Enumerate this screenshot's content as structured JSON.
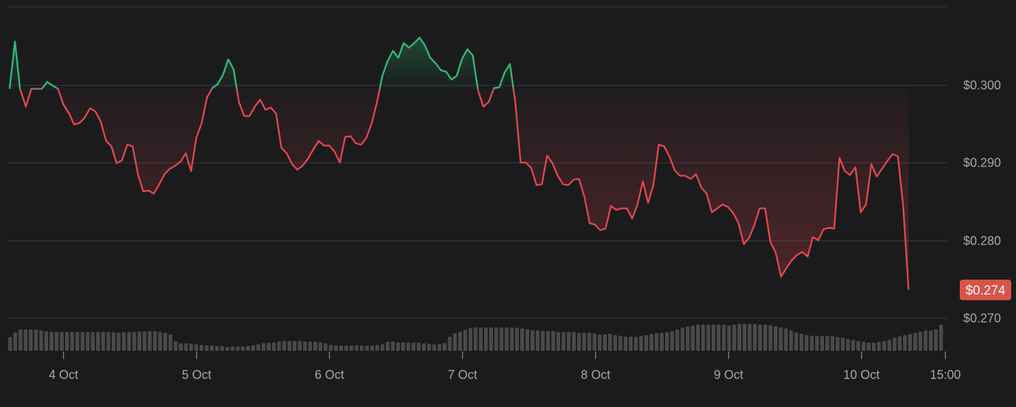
{
  "chart_data": {
    "type": "area",
    "baseline": 0.2995,
    "ylim": [
      0.265,
      0.31
    ],
    "y_ticks": [
      {
        "value": 0.3,
        "label": "$0.300"
      },
      {
        "value": 0.29,
        "label": "$0.290"
      },
      {
        "value": 0.28,
        "label": "$0.280"
      },
      {
        "value": 0.27,
        "label": "$0.270"
      }
    ],
    "x_ticks": [
      {
        "label": "4 Oct",
        "x": 6.54
      },
      {
        "label": "5 Oct",
        "x": 13.55
      },
      {
        "label": "6 Oct",
        "x": 20.55
      },
      {
        "label": "7 Oct",
        "x": 27.56
      },
      {
        "label": "8 Oct",
        "x": 34.57
      },
      {
        "label": "9 Oct",
        "x": 41.58
      },
      {
        "label": "10 Oct",
        "x": 48.58
      },
      {
        "label": "15:00",
        "x": 53.0
      }
    ],
    "x_range": [
      3.7,
      53.0
    ],
    "current_price": {
      "value": 0.2736,
      "label": "$0.274"
    },
    "colors": {
      "up": "#2fbf75",
      "down": "#e5484d",
      "grid": "#3a3a3e",
      "volume": "#4a4a4d",
      "badge": "#d9534a"
    },
    "series": [
      {
        "points": [
          [
            3.7,
            0.2995
          ],
          [
            3.98,
            0.3056
          ],
          [
            4.25,
            0.2995
          ],
          [
            4.56,
            0.2972
          ],
          [
            4.84,
            0.2995
          ],
          [
            5.12,
            0.2995
          ],
          [
            5.4,
            0.2995
          ],
          [
            5.68,
            0.3004
          ],
          [
            5.97,
            0.2999
          ],
          [
            6.25,
            0.2995
          ],
          [
            6.53,
            0.2975
          ],
          [
            6.82,
            0.2964
          ],
          [
            7.1,
            0.2949
          ],
          [
            7.38,
            0.2951
          ],
          [
            7.66,
            0.2958
          ],
          [
            7.94,
            0.297
          ],
          [
            8.22,
            0.2966
          ],
          [
            8.5,
            0.2953
          ],
          [
            8.78,
            0.2928
          ],
          [
            9.06,
            0.2921
          ],
          [
            9.34,
            0.2899
          ],
          [
            9.62,
            0.2903
          ],
          [
            9.9,
            0.2923
          ],
          [
            10.18,
            0.2921
          ],
          [
            10.46,
            0.2885
          ],
          [
            10.74,
            0.2863
          ],
          [
            11.02,
            0.2864
          ],
          [
            11.3,
            0.286
          ],
          [
            11.58,
            0.2872
          ],
          [
            11.86,
            0.2885
          ],
          [
            12.14,
            0.2892
          ],
          [
            12.42,
            0.2896
          ],
          [
            12.7,
            0.2901
          ],
          [
            12.98,
            0.2912
          ],
          [
            13.26,
            0.2889
          ],
          [
            13.54,
            0.2932
          ],
          [
            13.82,
            0.2951
          ],
          [
            14.1,
            0.2984
          ],
          [
            14.38,
            0.2996
          ],
          [
            14.66,
            0.3001
          ],
          [
            14.94,
            0.3013
          ],
          [
            15.22,
            0.3033
          ],
          [
            15.5,
            0.302
          ],
          [
            15.78,
            0.2978
          ],
          [
            16.06,
            0.296
          ],
          [
            16.34,
            0.296
          ],
          [
            16.62,
            0.2972
          ],
          [
            16.9,
            0.2981
          ],
          [
            17.18,
            0.2968
          ],
          [
            17.46,
            0.2971
          ],
          [
            17.74,
            0.2963
          ],
          [
            18.02,
            0.2919
          ],
          [
            18.3,
            0.2912
          ],
          [
            18.58,
            0.2898
          ],
          [
            18.86,
            0.2891
          ],
          [
            19.14,
            0.2896
          ],
          [
            19.42,
            0.2905
          ],
          [
            19.7,
            0.2917
          ],
          [
            19.98,
            0.2928
          ],
          [
            20.26,
            0.2922
          ],
          [
            20.54,
            0.2922
          ],
          [
            20.82,
            0.2914
          ],
          [
            21.1,
            0.29
          ],
          [
            21.38,
            0.2933
          ],
          [
            21.66,
            0.2934
          ],
          [
            21.94,
            0.2925
          ],
          [
            22.22,
            0.2923
          ],
          [
            22.5,
            0.2932
          ],
          [
            22.78,
            0.2951
          ],
          [
            23.06,
            0.2978
          ],
          [
            23.34,
            0.3012
          ],
          [
            23.62,
            0.3031
          ],
          [
            23.9,
            0.3044
          ],
          [
            24.18,
            0.3035
          ],
          [
            24.46,
            0.3054
          ],
          [
            24.74,
            0.3048
          ],
          [
            25.02,
            0.3054
          ],
          [
            25.3,
            0.3061
          ],
          [
            25.58,
            0.3051
          ],
          [
            25.86,
            0.3035
          ],
          [
            26.14,
            0.3028
          ],
          [
            26.42,
            0.3019
          ],
          [
            26.7,
            0.3017
          ],
          [
            26.98,
            0.3007
          ],
          [
            27.26,
            0.3012
          ],
          [
            27.54,
            0.3034
          ],
          [
            27.82,
            0.3046
          ],
          [
            28.1,
            0.3038
          ],
          [
            28.38,
            0.2993
          ],
          [
            28.66,
            0.2972
          ],
          [
            28.94,
            0.2978
          ],
          [
            29.22,
            0.2996
          ],
          [
            29.5,
            0.2997
          ],
          [
            29.78,
            0.3016
          ],
          [
            30.06,
            0.3027
          ],
          [
            30.34,
            0.2978
          ],
          [
            30.62,
            0.29
          ],
          [
            30.9,
            0.29
          ],
          [
            31.18,
            0.2893
          ],
          [
            31.46,
            0.2871
          ],
          [
            31.74,
            0.2872
          ],
          [
            32.02,
            0.2909
          ],
          [
            32.3,
            0.2899
          ],
          [
            32.58,
            0.2883
          ],
          [
            32.86,
            0.2872
          ],
          [
            33.14,
            0.2871
          ],
          [
            33.42,
            0.2878
          ],
          [
            33.7,
            0.2879
          ],
          [
            33.98,
            0.2856
          ],
          [
            34.26,
            0.2822
          ],
          [
            34.54,
            0.282
          ],
          [
            34.82,
            0.2813
          ],
          [
            35.1,
            0.2815
          ],
          [
            35.38,
            0.2844
          ],
          [
            35.66,
            0.2839
          ],
          [
            35.94,
            0.2841
          ],
          [
            36.22,
            0.2841
          ],
          [
            36.5,
            0.2828
          ],
          [
            36.78,
            0.2846
          ],
          [
            37.06,
            0.2876
          ],
          [
            37.34,
            0.2848
          ],
          [
            37.62,
            0.2872
          ],
          [
            37.9,
            0.2923
          ],
          [
            38.18,
            0.2921
          ],
          [
            38.46,
            0.2908
          ],
          [
            38.74,
            0.289
          ],
          [
            39.02,
            0.2883
          ],
          [
            39.3,
            0.2883
          ],
          [
            39.58,
            0.2879
          ],
          [
            39.86,
            0.2885
          ],
          [
            40.14,
            0.2868
          ],
          [
            40.42,
            0.286
          ],
          [
            40.7,
            0.2836
          ],
          [
            40.98,
            0.2841
          ],
          [
            41.26,
            0.2846
          ],
          [
            41.54,
            0.2843
          ],
          [
            41.82,
            0.2835
          ],
          [
            42.1,
            0.2822
          ],
          [
            42.38,
            0.2795
          ],
          [
            42.66,
            0.2803
          ],
          [
            42.94,
            0.282
          ],
          [
            43.22,
            0.2841
          ],
          [
            43.5,
            0.2841
          ],
          [
            43.78,
            0.2798
          ],
          [
            44.06,
            0.2784
          ],
          [
            44.34,
            0.2753
          ],
          [
            44.62,
            0.2764
          ],
          [
            44.9,
            0.2774
          ],
          [
            45.18,
            0.2781
          ],
          [
            45.46,
            0.2785
          ],
          [
            45.74,
            0.2779
          ],
          [
            46.02,
            0.2804
          ],
          [
            46.3,
            0.28
          ],
          [
            46.58,
            0.2814
          ],
          [
            46.86,
            0.2816
          ],
          [
            47.14,
            0.2815
          ],
          [
            47.42,
            0.2906
          ],
          [
            47.7,
            0.2889
          ],
          [
            47.98,
            0.2884
          ],
          [
            48.26,
            0.2894
          ],
          [
            48.54,
            0.2836
          ],
          [
            48.82,
            0.2846
          ],
          [
            49.1,
            0.2898
          ],
          [
            49.38,
            0.2882
          ],
          [
            49.66,
            0.2892
          ],
          [
            49.94,
            0.2902
          ],
          [
            50.22,
            0.2911
          ],
          [
            50.5,
            0.2908
          ],
          [
            50.78,
            0.2843
          ],
          [
            51.06,
            0.2736
          ]
        ]
      }
    ],
    "volume": [
      0.42,
      0.56,
      0.65,
      0.65,
      0.65,
      0.65,
      0.62,
      0.6,
      0.58,
      0.57,
      0.57,
      0.57,
      0.57,
      0.57,
      0.57,
      0.57,
      0.57,
      0.57,
      0.57,
      0.57,
      0.57,
      0.55,
      0.57,
      0.57,
      0.57,
      0.59,
      0.59,
      0.6,
      0.6,
      0.57,
      0.55,
      0.5,
      0.3,
      0.23,
      0.23,
      0.22,
      0.2,
      0.18,
      0.17,
      0.16,
      0.14,
      0.14,
      0.12,
      0.13,
      0.13,
      0.13,
      0.15,
      0.17,
      0.2,
      0.23,
      0.25,
      0.25,
      0.28,
      0.3,
      0.3,
      0.3,
      0.3,
      0.28,
      0.28,
      0.28,
      0.26,
      0.23,
      0.18,
      0.16,
      0.16,
      0.16,
      0.16,
      0.17,
      0.16,
      0.16,
      0.16,
      0.18,
      0.2,
      0.28,
      0.28,
      0.26,
      0.26,
      0.26,
      0.25,
      0.25,
      0.23,
      0.21,
      0.2,
      0.21,
      0.24,
      0.43,
      0.53,
      0.58,
      0.64,
      0.69,
      0.71,
      0.71,
      0.71,
      0.71,
      0.71,
      0.71,
      0.71,
      0.71,
      0.7,
      0.68,
      0.66,
      0.62,
      0.62,
      0.6,
      0.6,
      0.6,
      0.57,
      0.57,
      0.57,
      0.57,
      0.55,
      0.55,
      0.55,
      0.53,
      0.5,
      0.5,
      0.52,
      0.48,
      0.45,
      0.43,
      0.43,
      0.43,
      0.45,
      0.48,
      0.51,
      0.54,
      0.55,
      0.57,
      0.6,
      0.65,
      0.7,
      0.74,
      0.77,
      0.8,
      0.8,
      0.8,
      0.8,
      0.8,
      0.8,
      0.77,
      0.8,
      0.82,
      0.82,
      0.82,
      0.82,
      0.8,
      0.8,
      0.78,
      0.75,
      0.71,
      0.68,
      0.62,
      0.56,
      0.52,
      0.48,
      0.46,
      0.45,
      0.45,
      0.45,
      0.45,
      0.42,
      0.4,
      0.36,
      0.33,
      0.3,
      0.28,
      0.25,
      0.25,
      0.27,
      0.3,
      0.33,
      0.4,
      0.44,
      0.48,
      0.51,
      0.55,
      0.58,
      0.62,
      0.62,
      0.65,
      0.8
    ]
  }
}
